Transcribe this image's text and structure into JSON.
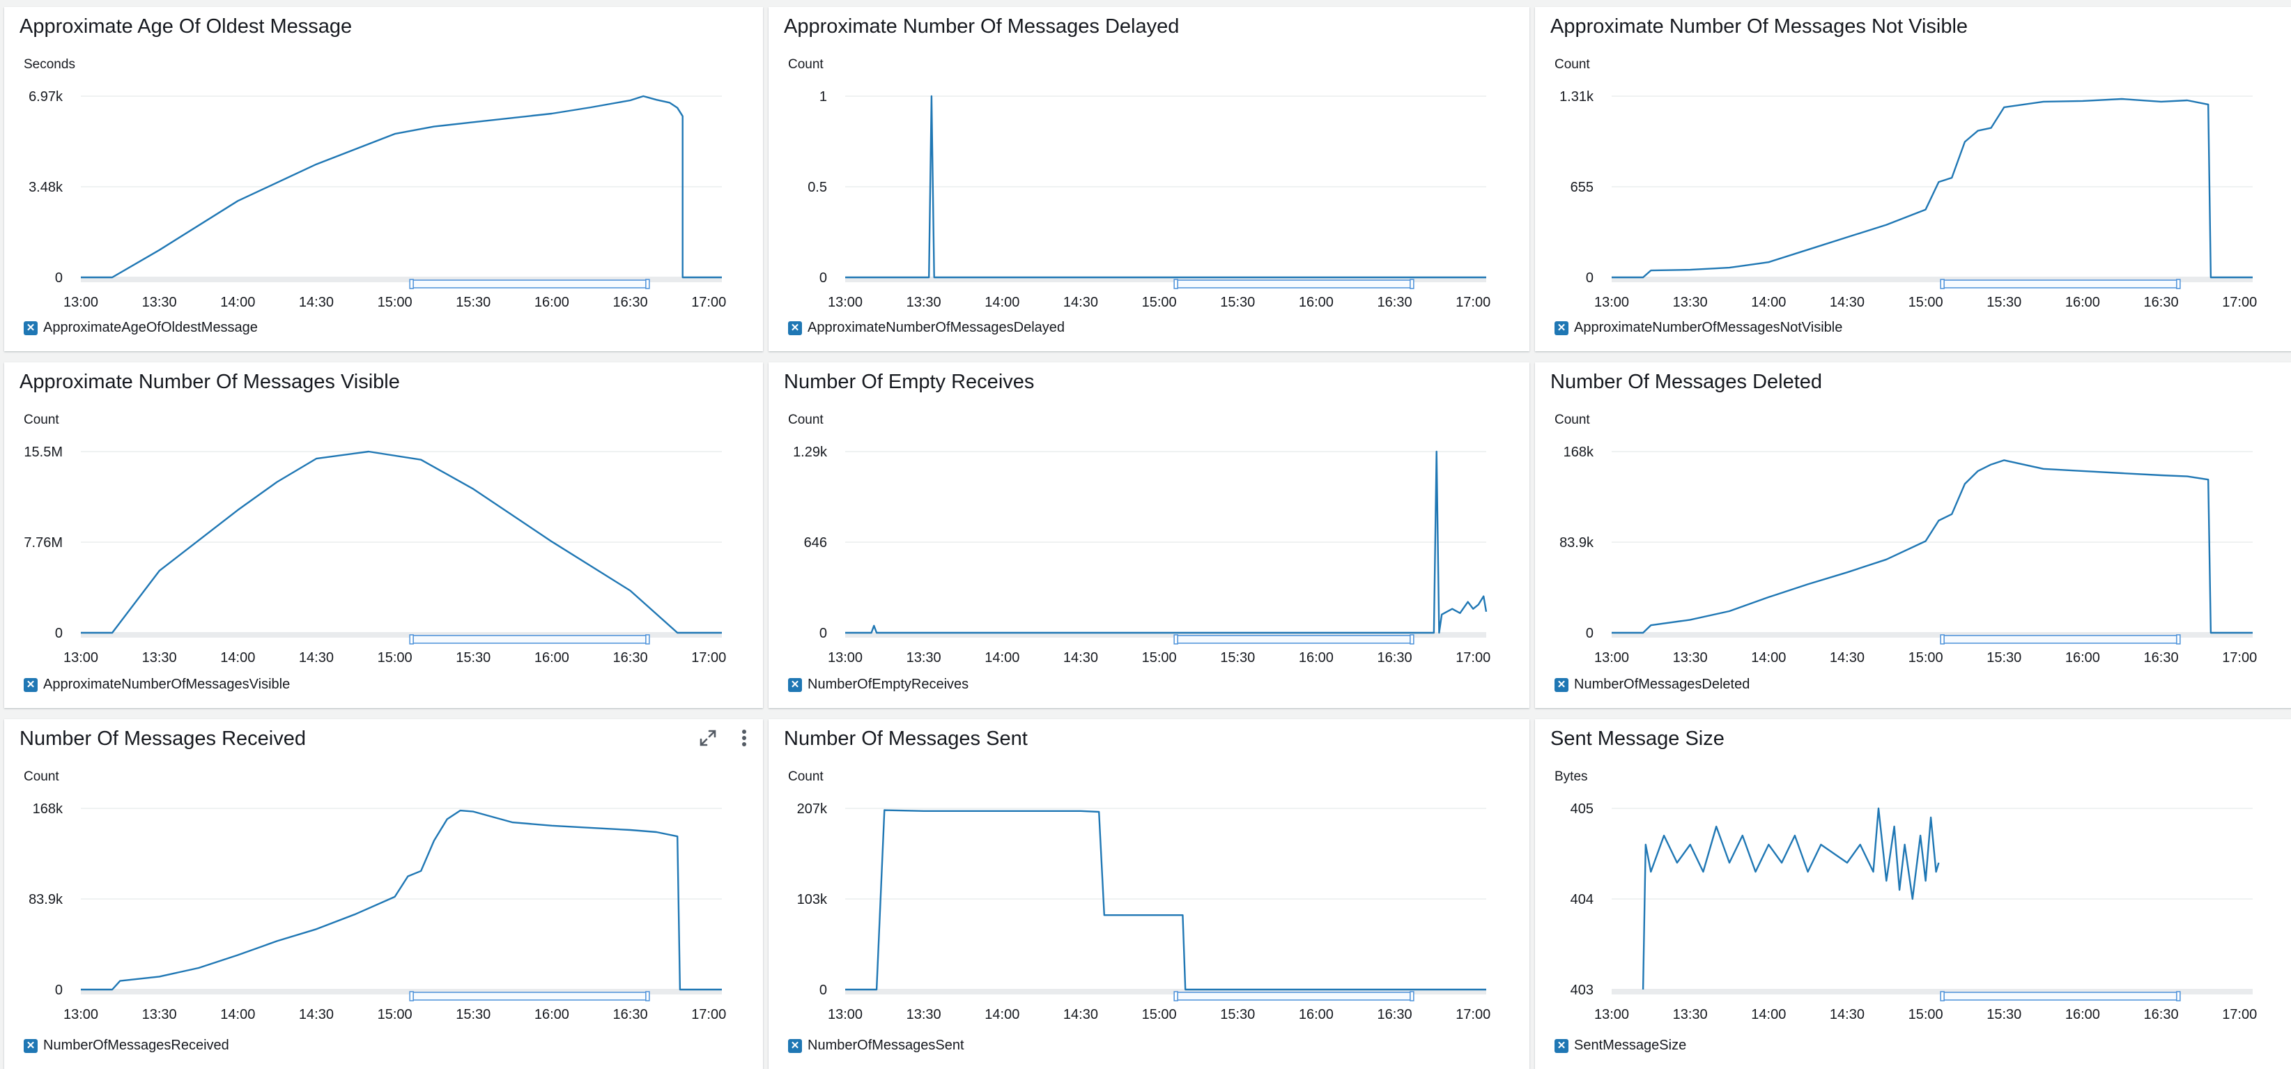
{
  "colors": {
    "series": "#1f77b4",
    "grid": "#eaeded",
    "baseline": "#aab7b8",
    "scrub": "#4a90d9"
  },
  "icons": {
    "expand": "expand-arrows-icon",
    "more": "vertical-ellipsis-icon",
    "legend_toggle": "legend-checkbox-icon"
  },
  "x_tick_labels": [
    "13:00",
    "13:30",
    "14:00",
    "14:30",
    "15:00",
    "15:30",
    "16:00",
    "16:30",
    "17:00"
  ],
  "chart_data": [
    {
      "type": "line",
      "title": "Approximate Age Of Oldest Message",
      "ylabel": "Seconds",
      "legend": "ApproximateAgeOfOldestMessage",
      "y_ticks": [
        "6.97k",
        "3.48k",
        "0"
      ],
      "ylim": [
        0,
        6970
      ],
      "x_start": "13:00",
      "x_end": "17:05",
      "series": [
        {
          "name": "ApproximateAgeOfOldestMessage",
          "x": [
            "13:00",
            "13:12",
            "13:30",
            "14:00",
            "14:30",
            "15:00",
            "15:15",
            "15:30",
            "16:00",
            "16:15",
            "16:30",
            "16:35",
            "16:40",
            "16:45",
            "16:48",
            "16:50",
            "16:50",
            "17:05"
          ],
          "values": [
            0,
            0,
            1050,
            2940,
            4350,
            5520,
            5800,
            5970,
            6300,
            6540,
            6810,
            6970,
            6830,
            6720,
            6520,
            6200,
            0,
            0
          ]
        }
      ]
    },
    {
      "type": "line",
      "title": "Approximate Number Of Messages Delayed",
      "ylabel": "Count",
      "legend": "ApproximateNumberOfMessagesDelayed",
      "y_ticks": [
        "1",
        "0.5",
        "0"
      ],
      "ylim": [
        0,
        1
      ],
      "x_start": "13:00",
      "x_end": "17:05",
      "series": [
        {
          "name": "ApproximateNumberOfMessagesDelayed",
          "x": [
            "13:00",
            "13:32",
            "13:33",
            "13:34",
            "17:05"
          ],
          "values": [
            0,
            0,
            1,
            0,
            0
          ]
        }
      ]
    },
    {
      "type": "line",
      "title": "Approximate Number Of Messages Not Visible",
      "ylabel": "Count",
      "legend": "ApproximateNumberOfMessagesNotVisible",
      "y_ticks": [
        "1.31k",
        "655",
        "0"
      ],
      "ylim": [
        0,
        1310
      ],
      "x_start": "13:00",
      "x_end": "17:05",
      "series": [
        {
          "name": "ApproximateNumberOfMessagesNotVisible",
          "x": [
            "13:00",
            "13:12",
            "13:15",
            "13:30",
            "13:45",
            "14:00",
            "14:15",
            "14:30",
            "14:45",
            "15:00",
            "15:05",
            "15:10",
            "15:15",
            "15:20",
            "15:25",
            "15:30",
            "15:45",
            "16:00",
            "16:15",
            "16:30",
            "16:40",
            "16:48",
            "16:49",
            "17:05"
          ],
          "values": [
            0,
            0,
            50,
            55,
            70,
            110,
            200,
            290,
            380,
            490,
            690,
            720,
            980,
            1060,
            1080,
            1230,
            1270,
            1275,
            1290,
            1270,
            1280,
            1250,
            0,
            0
          ]
        }
      ]
    },
    {
      "type": "line",
      "title": "Approximate Number Of Messages Visible",
      "ylabel": "Count",
      "legend": "ApproximateNumberOfMessagesVisible",
      "y_ticks": [
        "15.5M",
        "7.76M",
        "0"
      ],
      "ylim": [
        0,
        15500000
      ],
      "x_start": "13:00",
      "x_end": "17:05",
      "series": [
        {
          "name": "ApproximateNumberOfMessagesVisible",
          "x": [
            "13:00",
            "13:12",
            "13:30",
            "14:00",
            "14:15",
            "14:30",
            "14:50",
            "15:10",
            "15:30",
            "16:00",
            "16:30",
            "16:48",
            "17:05"
          ],
          "values": [
            0,
            0,
            5300000,
            10500000,
            12900000,
            14900000,
            15500000,
            14800000,
            12300000,
            7800000,
            3600000,
            0,
            0
          ]
        }
      ]
    },
    {
      "type": "line",
      "title": "Number Of Empty Receives",
      "ylabel": "Count",
      "legend": "NumberOfEmptyReceives",
      "y_ticks": [
        "1.29k",
        "646",
        "0"
      ],
      "ylim": [
        0,
        1290
      ],
      "x_start": "13:00",
      "x_end": "17:05",
      "series": [
        {
          "name": "NumberOfEmptyReceives",
          "x": [
            "13:00",
            "13:10",
            "13:11",
            "13:12",
            "16:45",
            "16:46",
            "16:47",
            "16:48",
            "16:52",
            "16:55",
            "16:58",
            "17:00",
            "17:02",
            "17:04",
            "17:05"
          ],
          "values": [
            0,
            0,
            50,
            0,
            0,
            1290,
            0,
            130,
            170,
            140,
            220,
            170,
            200,
            260,
            150
          ]
        }
      ]
    },
    {
      "type": "line",
      "title": "Number Of Messages Deleted",
      "ylabel": "Count",
      "legend": "NumberOfMessagesDeleted",
      "y_ticks": [
        "168k",
        "83.9k",
        "0"
      ],
      "ylim": [
        0,
        168000
      ],
      "x_start": "13:00",
      "x_end": "17:05",
      "series": [
        {
          "name": "NumberOfMessagesDeleted",
          "x": [
            "13:00",
            "13:12",
            "13:15",
            "13:30",
            "13:45",
            "14:00",
            "14:15",
            "14:30",
            "14:45",
            "15:00",
            "15:05",
            "15:10",
            "15:15",
            "15:20",
            "15:25",
            "15:30",
            "15:45",
            "16:00",
            "16:15",
            "16:30",
            "16:40",
            "16:48",
            "16:49",
            "17:05"
          ],
          "values": [
            0,
            0,
            7000,
            12000,
            20000,
            33000,
            45000,
            56000,
            68000,
            85000,
            104000,
            110000,
            138000,
            150000,
            156000,
            160000,
            152000,
            150000,
            148000,
            146000,
            145000,
            142000,
            0,
            0
          ]
        }
      ]
    },
    {
      "type": "line",
      "title": "Number Of Messages Received",
      "ylabel": "Count",
      "legend": "NumberOfMessagesReceived",
      "y_ticks": [
        "168k",
        "83.9k",
        "0"
      ],
      "ylim": [
        0,
        168000
      ],
      "x_start": "13:00",
      "x_end": "17:05",
      "series": [
        {
          "name": "NumberOfMessagesReceived",
          "x": [
            "13:00",
            "13:12",
            "13:15",
            "13:30",
            "13:45",
            "14:00",
            "14:15",
            "14:30",
            "14:45",
            "15:00",
            "15:05",
            "15:10",
            "15:15",
            "15:20",
            "15:25",
            "15:30",
            "15:45",
            "16:00",
            "16:15",
            "16:30",
            "16:40",
            "16:48",
            "16:49",
            "17:05"
          ],
          "values": [
            0,
            0,
            8000,
            12000,
            20000,
            32000,
            45000,
            56000,
            70000,
            86000,
            105000,
            110000,
            138000,
            158000,
            166000,
            165000,
            155000,
            152000,
            150000,
            148000,
            146000,
            142000,
            0,
            0
          ]
        }
      ]
    },
    {
      "type": "line",
      "title": "Number Of Messages Sent",
      "ylabel": "Count",
      "legend": "NumberOfMessagesSent",
      "y_ticks": [
        "207k",
        "103k",
        "0"
      ],
      "ylim": [
        0,
        207000
      ],
      "x_start": "13:00",
      "x_end": "17:05",
      "series": [
        {
          "name": "NumberOfMessagesSent",
          "x": [
            "13:00",
            "13:12",
            "13:15",
            "13:30",
            "14:00",
            "14:30",
            "14:37",
            "14:39",
            "15:00",
            "15:09",
            "15:10",
            "17:05"
          ],
          "values": [
            0,
            0,
            205000,
            204000,
            204000,
            204000,
            203000,
            85000,
            85000,
            85000,
            0,
            0
          ]
        }
      ]
    },
    {
      "type": "line",
      "title": "Sent Message Size",
      "ylabel": "Bytes",
      "legend": "SentMessageSize",
      "y_ticks": [
        "405",
        "404",
        "403"
      ],
      "ylim": [
        403,
        405
      ],
      "x_start": "13:00",
      "x_end": "17:05",
      "series": [
        {
          "name": "SentMessageSize",
          "x": [
            "13:12",
            "13:13",
            "13:15",
            "13:20",
            "13:25",
            "13:30",
            "13:35",
            "13:40",
            "13:45",
            "13:50",
            "13:55",
            "14:00",
            "14:05",
            "14:10",
            "14:15",
            "14:20",
            "14:25",
            "14:30",
            "14:35",
            "14:40",
            "14:42",
            "14:45",
            "14:48",
            "14:50",
            "14:52",
            "14:55",
            "14:58",
            "15:00",
            "15:02",
            "15:04",
            "15:05"
          ],
          "values": [
            403,
            404.6,
            404.3,
            404.7,
            404.4,
            404.6,
            404.3,
            404.8,
            404.4,
            404.7,
            404.3,
            404.6,
            404.4,
            404.7,
            404.3,
            404.6,
            404.5,
            404.4,
            404.6,
            404.3,
            405,
            404.2,
            404.8,
            404.1,
            404.6,
            404,
            404.7,
            404.2,
            404.9,
            404.3,
            404.4
          ]
        }
      ]
    }
  ]
}
